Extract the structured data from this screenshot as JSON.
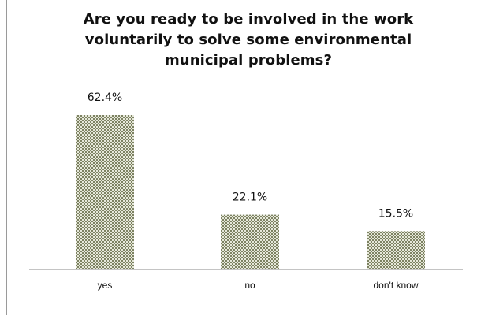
{
  "chart_data": {
    "type": "bar",
    "title": "Are you ready to be involved in the work voluntarily to solve some environmental municipal problems?",
    "categories": [
      "yes",
      "no",
      "don't know"
    ],
    "values": [
      62.4,
      22.1,
      15.5
    ],
    "value_labels": [
      "62.4%",
      "22.1%",
      "15.5%"
    ],
    "unit": "%",
    "ylim": [
      0,
      70
    ],
    "grid": false,
    "legend": "none",
    "bar_pattern": "checkered",
    "bar_color": "#8c9170"
  }
}
